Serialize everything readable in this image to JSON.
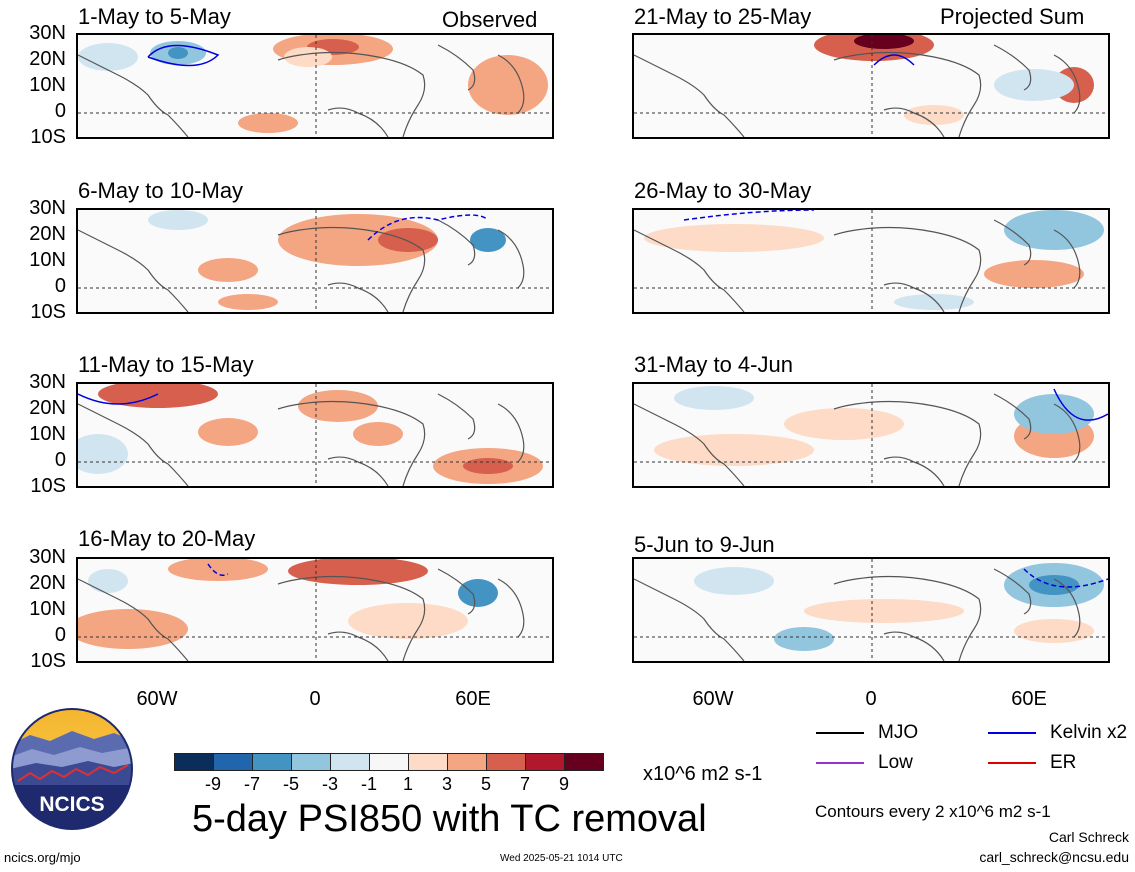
{
  "panels": [
    {
      "title": "1-May to 5-May",
      "tag": "Observed"
    },
    {
      "title": "6-May to 10-May",
      "tag": ""
    },
    {
      "title": "11-May to 15-May",
      "tag": ""
    },
    {
      "title": "16-May to 20-May",
      "tag": ""
    },
    {
      "title": "21-May to 25-May",
      "tag": "Projected Sum"
    },
    {
      "title": "26-May to 30-May",
      "tag": ""
    },
    {
      "title": "31-May to 4-Jun",
      "tag": ""
    },
    {
      "title": "5-Jun to 9-Jun",
      "tag": ""
    }
  ],
  "lat_labels": [
    "30N",
    "20N",
    "10N",
    "0",
    "10S"
  ],
  "lon_labels": [
    "60W",
    "0",
    "60E"
  ],
  "colorbar": {
    "colors": [
      "#0b2d5a",
      "#2166ac",
      "#4393c3",
      "#92c5de",
      "#d1e5f0",
      "#f7f7f7",
      "#fddbc7",
      "#f4a582",
      "#d6604d",
      "#b2182b",
      "#67001f"
    ],
    "ticks": [
      "-9",
      "-7",
      "-5",
      "-3",
      "-1",
      "1",
      "3",
      "5",
      "7",
      "9"
    ],
    "unit": "x10^6 m2 s-1"
  },
  "title": "5-day PSI850 with TC removal",
  "legend": [
    {
      "label": "MJO",
      "color": "#000000"
    },
    {
      "label": "Kelvin x2",
      "color": "#0000dd"
    },
    {
      "label": "Low",
      "color": "#9932cc"
    },
    {
      "label": "ER",
      "color": "#dd0000"
    }
  ],
  "contour_note": "Contours every 2 x10^6 m2 s-1",
  "author": "Carl Schreck",
  "email": "carl_schreck@ncsu.edu",
  "site": "ncics.org/mjo",
  "timestamp": "Wed 2025-05-21 1014 UTC",
  "logo_text": "NCICS"
}
